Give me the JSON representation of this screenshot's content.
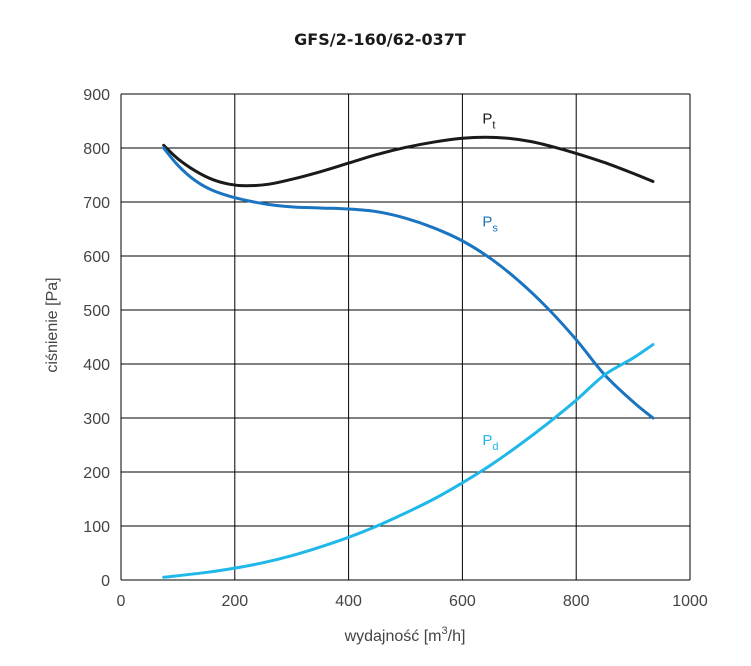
{
  "chart_data": {
    "type": "line",
    "title": "GFS/2-160/62-037T",
    "xlabel": "wydajność [m",
    "xlabel_sup": "3",
    "xlabel_suffix": "/h]",
    "ylabel": "ciśnienie [Pa]",
    "xlim": [
      0,
      1000
    ],
    "ylim": [
      0,
      900
    ],
    "xticks": [
      0,
      200,
      400,
      600,
      800,
      1000
    ],
    "yticks": [
      0,
      100,
      200,
      300,
      400,
      500,
      600,
      700,
      800,
      900
    ],
    "grid": true,
    "series": [
      {
        "name": "P",
        "subscript": "t",
        "color": "#1a1a1a",
        "x": [
          75,
          100,
          130,
          160,
          190,
          220,
          260,
          300,
          350,
          400,
          450,
          500,
          550,
          600,
          640,
          680,
          720,
          760,
          800,
          850,
          900,
          935
        ],
        "y": [
          805,
          780,
          758,
          742,
          733,
          730,
          733,
          742,
          756,
          772,
          788,
          801,
          811,
          818,
          820,
          818,
          812,
          802,
          790,
          773,
          753,
          738
        ]
      },
      {
        "name": "P",
        "subscript": "s",
        "color": "#1a74c0",
        "x": [
          75,
          100,
          130,
          160,
          200,
          250,
          300,
          350,
          400,
          450,
          500,
          550,
          600,
          650,
          700,
          750,
          800,
          850,
          900,
          935
        ],
        "y": [
          800,
          768,
          740,
          722,
          708,
          697,
          691,
          689,
          687,
          682,
          670,
          652,
          628,
          595,
          553,
          503,
          445,
          380,
          330,
          300
        ]
      },
      {
        "name": "P",
        "subscript": "d",
        "color": "#1fb8e8",
        "x": [
          75,
          150,
          200,
          250,
          300,
          350,
          400,
          450,
          500,
          550,
          600,
          650,
          700,
          750,
          800,
          850,
          900,
          935
        ],
        "y": [
          5,
          14,
          22,
          32,
          45,
          61,
          79,
          100,
          124,
          150,
          180,
          213,
          250,
          290,
          333,
          380,
          411,
          436
        ]
      }
    ],
    "series_labels": [
      {
        "text": "P",
        "sub": "t",
        "x": 635,
        "y": 845,
        "color": "#1a1a1a"
      },
      {
        "text": "P",
        "sub": "s",
        "x": 635,
        "y": 655,
        "color": "#1a74c0"
      },
      {
        "text": "P",
        "sub": "d",
        "x": 635,
        "y": 250,
        "color": "#1fb8e8"
      }
    ]
  }
}
